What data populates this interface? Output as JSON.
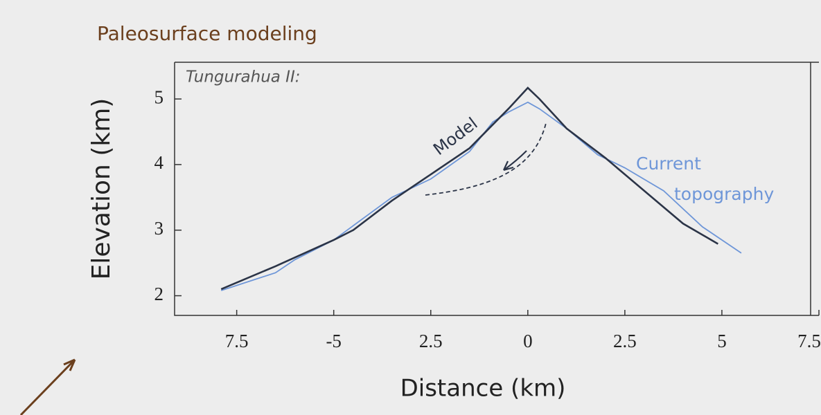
{
  "chart_data": {
    "type": "line",
    "title": "Paleosurface modeling",
    "subtitle": "Tungurahua II:",
    "x_label": "Distance (km)",
    "y_label": "Elevation (km)",
    "xlim": [
      -9.1,
      7.5
    ],
    "ylim": [
      1.7,
      5.56
    ],
    "xticks": [
      {
        "value": -7.5,
        "label": "7.5"
      },
      -5,
      {
        "value": -2.5,
        "label": "2.5"
      },
      0,
      2.5,
      5,
      7.5
    ],
    "yticks": [
      2,
      3,
      4,
      5
    ],
    "series": [
      {
        "name": "Model",
        "color": "#2b3447",
        "x": [
          -7.9,
          -6.5,
          -5,
          -4.5,
          -3.5,
          -2.5,
          -1.5,
          -0.5,
          0,
          0.3,
          1,
          2,
          3,
          4,
          4.9
        ],
        "values": [
          2.1,
          2.45,
          2.85,
          3.0,
          3.45,
          3.85,
          4.25,
          4.85,
          5.17,
          5.0,
          4.55,
          4.1,
          3.6,
          3.1,
          2.79
        ]
      },
      {
        "name": "Current topography",
        "color": "#6e96d8",
        "x": [
          -7.9,
          -6.5,
          -6,
          -5,
          -3.5,
          -2.5,
          -1.5,
          -0.9,
          -0.5,
          0,
          0.3,
          1,
          1.8,
          2.5,
          3.5,
          4.5,
          5.5
        ],
        "values": [
          2.08,
          2.35,
          2.55,
          2.85,
          3.5,
          3.78,
          4.2,
          4.65,
          4.8,
          4.95,
          4.85,
          4.55,
          4.15,
          3.95,
          3.6,
          3.05,
          2.65
        ]
      }
    ],
    "annotations": [
      "Current",
      "topography"
    ]
  }
}
